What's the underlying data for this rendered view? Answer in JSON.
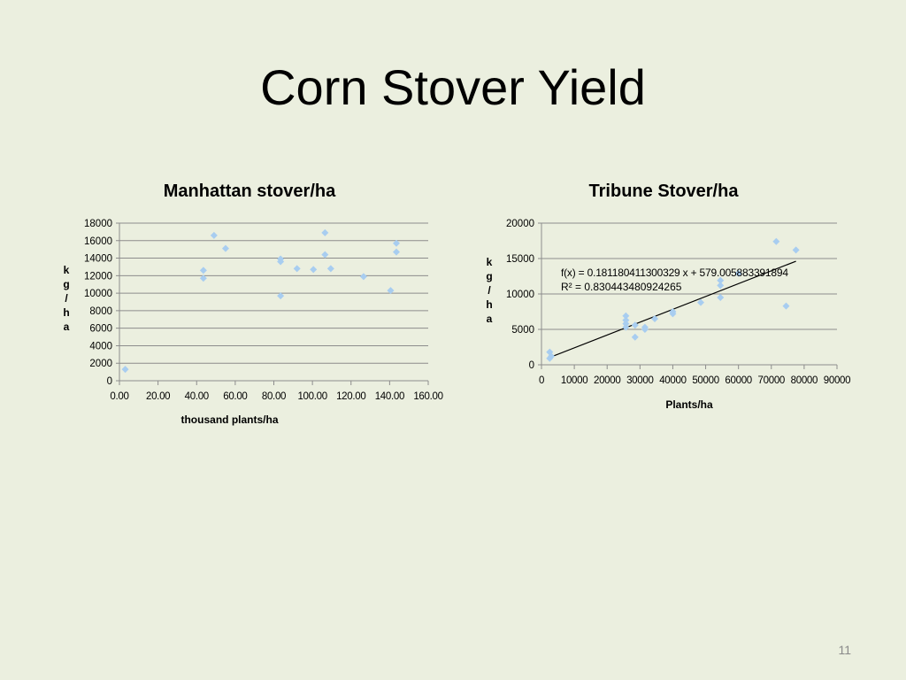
{
  "slide": {
    "title": "Corn Stover Yield",
    "page_number": "11"
  },
  "colors": {
    "background": "#ebefdf",
    "marker": "#a8cdf0",
    "gridline": "#8c8c8c",
    "trendline": "#000000"
  },
  "chart_data": [
    {
      "type": "scatter",
      "title": "Manhattan stover/ha",
      "xlabel": "thousand plants/ha",
      "ylabel": "kg/ha",
      "xlim": [
        0,
        160
      ],
      "ylim": [
        0,
        18000
      ],
      "x_ticks": [
        "0.00",
        "20.00",
        "40.00",
        "60.00",
        "80.00",
        "100.00",
        "120.00",
        "140.00",
        "160.00"
      ],
      "y_ticks": [
        "0",
        "2000",
        "4000",
        "6000",
        "8000",
        "10000",
        "12000",
        "14000",
        "16000",
        "18000"
      ],
      "grid": "horizontal",
      "marker": "diamond",
      "points": [
        {
          "x": 3,
          "y": 1300
        },
        {
          "x": 43.5,
          "y": 12600
        },
        {
          "x": 43.5,
          "y": 11700
        },
        {
          "x": 49,
          "y": 16600
        },
        {
          "x": 55,
          "y": 15100
        },
        {
          "x": 83.5,
          "y": 13900
        },
        {
          "x": 83.5,
          "y": 13600
        },
        {
          "x": 83.5,
          "y": 9700
        },
        {
          "x": 92,
          "y": 12800
        },
        {
          "x": 100.5,
          "y": 12700
        },
        {
          "x": 106.5,
          "y": 16900
        },
        {
          "x": 106.5,
          "y": 14400
        },
        {
          "x": 109.5,
          "y": 12800
        },
        {
          "x": 126.5,
          "y": 11900
        },
        {
          "x": 140.5,
          "y": 10300
        },
        {
          "x": 143.5,
          "y": 15700
        },
        {
          "x": 143.5,
          "y": 14700
        }
      ]
    },
    {
      "type": "scatter",
      "title": "Tribune Stover/ha",
      "xlabel": "Plants/ha",
      "ylabel": "kg/ha",
      "xlim": [
        0,
        90000
      ],
      "ylim": [
        0,
        20000
      ],
      "x_ticks": [
        "0",
        "10000",
        "20000",
        "30000",
        "40000",
        "50000",
        "60000",
        "70000",
        "80000",
        "90000"
      ],
      "y_ticks": [
        "0",
        "5000",
        "10000",
        "15000",
        "20000"
      ],
      "grid": "horizontal",
      "marker": "diamond",
      "trendline": {
        "slope": 0.181180411300329,
        "intercept": 579.005883391894,
        "x_range": [
          2500,
          77500
        ],
        "equation_label": "f(x) = 0.181180411300329 x + 579.005883391894",
        "r2_label": "R² = 0.830443480924265"
      },
      "points": [
        {
          "x": 2500,
          "y": 1800
        },
        {
          "x": 2500,
          "y": 900
        },
        {
          "x": 3000,
          "y": 1200
        },
        {
          "x": 25700,
          "y": 6900
        },
        {
          "x": 25700,
          "y": 6300
        },
        {
          "x": 25700,
          "y": 5800
        },
        {
          "x": 25700,
          "y": 5300
        },
        {
          "x": 28500,
          "y": 5600
        },
        {
          "x": 28500,
          "y": 3900
        },
        {
          "x": 31500,
          "y": 5300
        },
        {
          "x": 31500,
          "y": 5000
        },
        {
          "x": 34500,
          "y": 6500
        },
        {
          "x": 40000,
          "y": 7500
        },
        {
          "x": 40000,
          "y": 7200
        },
        {
          "x": 48500,
          "y": 8800
        },
        {
          "x": 54500,
          "y": 11900
        },
        {
          "x": 54500,
          "y": 11200
        },
        {
          "x": 54500,
          "y": 9500
        },
        {
          "x": 60000,
          "y": 12900
        },
        {
          "x": 71500,
          "y": 17400
        },
        {
          "x": 74500,
          "y": 8300
        },
        {
          "x": 77500,
          "y": 16200
        }
      ]
    }
  ]
}
